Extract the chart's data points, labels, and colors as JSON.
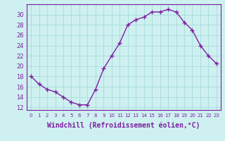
{
  "x": [
    0,
    1,
    2,
    3,
    4,
    5,
    6,
    7,
    8,
    9,
    10,
    11,
    12,
    13,
    14,
    15,
    16,
    17,
    18,
    19,
    20,
    21,
    22,
    23
  ],
  "y": [
    18,
    16.5,
    15.5,
    15,
    14,
    13,
    12.5,
    12.5,
    15.5,
    19.5,
    22,
    24.5,
    28,
    29,
    29.5,
    30.5,
    30.5,
    31,
    30.5,
    28.5,
    27,
    24,
    22,
    20.5
  ],
  "line_color": "#7b1fa2",
  "marker": "+",
  "marker_size": 4,
  "bg_color": "#cff0f0",
  "grid_color": "#aadddd",
  "xlabel": "Windchill (Refroidissement éolien,°C)",
  "xlabel_fontsize": 7,
  "ylabel_ticks": [
    12,
    14,
    16,
    18,
    20,
    22,
    24,
    26,
    28,
    30
  ],
  "ylim": [
    11.5,
    32
  ],
  "xlim": [
    -0.5,
    23.5
  ],
  "xtick_labels": [
    "0",
    "1",
    "2",
    "3",
    "4",
    "5",
    "6",
    "7",
    "8",
    "9",
    "10",
    "11",
    "12",
    "13",
    "14",
    "15",
    "16",
    "17",
    "18",
    "19",
    "20",
    "21",
    "22",
    "23"
  ],
  "ytick_fontsize": 6,
  "xtick_fontsize": 5,
  "line_width": 1.0
}
